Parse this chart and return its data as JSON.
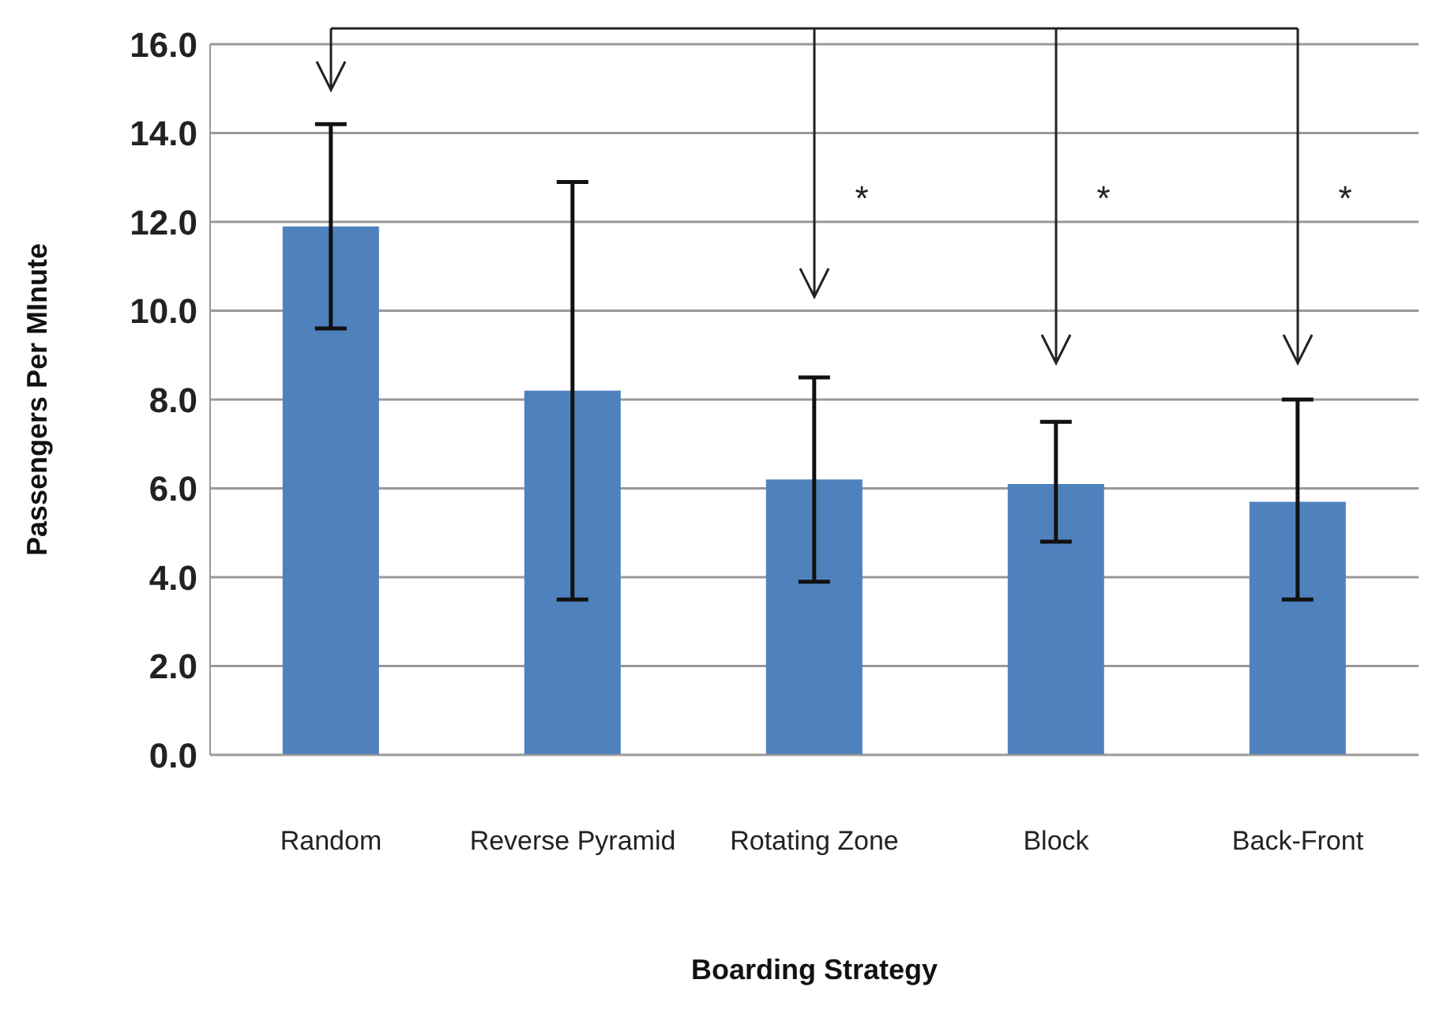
{
  "chart_data": {
    "type": "bar",
    "xlabel": "Boarding Strategy",
    "ylabel": "Passengers Per MInute",
    "categories": [
      "Random",
      "Reverse Pyramid",
      "Rotating Zone",
      "Block",
      "Back-Front"
    ],
    "values": [
      11.9,
      8.2,
      6.2,
      6.1,
      5.7
    ],
    "errors": [
      [
        9.6,
        14.2
      ],
      [
        3.5,
        12.9
      ],
      [
        3.9,
        8.5
      ],
      [
        4.8,
        7.5
      ],
      [
        3.5,
        8.0
      ]
    ],
    "color": "#4f81bd",
    "ylim": [
      0,
      16
    ],
    "yticks": [
      {
        "value": 0,
        "label": "0.0"
      },
      {
        "value": 2,
        "label": "2.0"
      },
      {
        "value": 4,
        "label": "4.0"
      },
      {
        "value": 6,
        "label": "6.0"
      },
      {
        "value": 8,
        "label": "8.0"
      },
      {
        "value": 10,
        "label": "10.0"
      },
      {
        "value": 12,
        "label": "12.0"
      },
      {
        "value": 14,
        "label": "14.0"
      },
      {
        "value": 16,
        "label": "16.0"
      }
    ],
    "grid": "y",
    "legend": false,
    "annotations": [
      "*",
      "*",
      "*"
    ]
  }
}
